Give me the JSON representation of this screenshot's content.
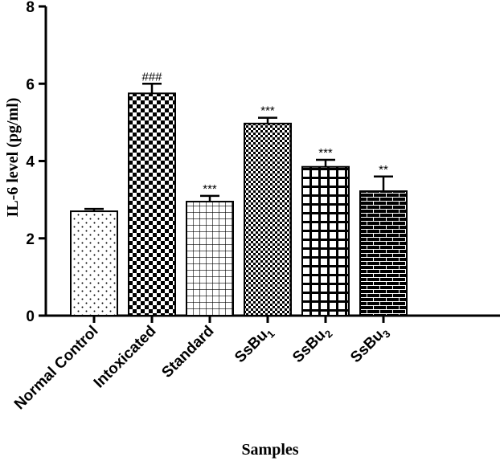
{
  "chart_data": {
    "type": "bar",
    "title": "",
    "xlabel": "Samples",
    "ylabel": "IL-6 level (pg/ml)",
    "ylim": [
      0,
      8
    ],
    "yticks": [
      "0",
      "2",
      "4",
      "6",
      "8"
    ],
    "categories": [
      {
        "name": "Normal Control",
        "sub": ""
      },
      {
        "name": "Intoxicated",
        "sub": ""
      },
      {
        "name": "Standard",
        "sub": ""
      },
      {
        "name": "SsBu",
        "sub": "1"
      },
      {
        "name": "SsBu",
        "sub": "2"
      },
      {
        "name": "SsBu",
        "sub": "3"
      }
    ],
    "values": [
      2.7,
      5.75,
      2.95,
      4.97,
      3.85,
      3.22
    ],
    "errors": [
      0.06,
      0.25,
      0.15,
      0.15,
      0.18,
      0.38
    ],
    "significance": [
      "",
      "###",
      "***",
      "***",
      "***",
      "**"
    ],
    "patterns": [
      "sparse-dots",
      "checkerboard",
      "grid",
      "fine-checker",
      "bold-grid",
      "bricks"
    ]
  }
}
